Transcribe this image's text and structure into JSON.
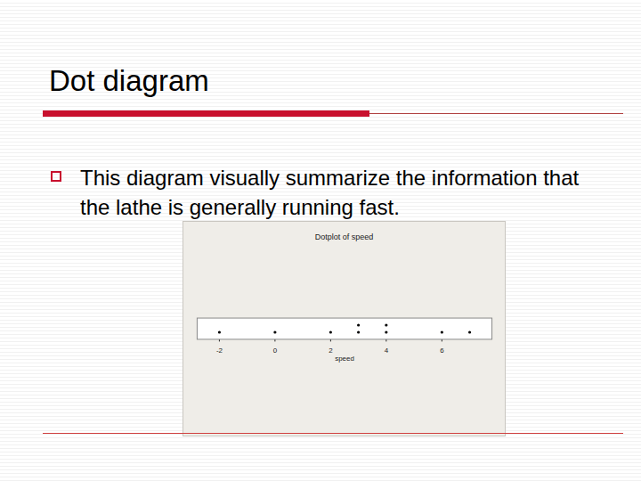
{
  "slide": {
    "title": "Dot diagram",
    "bullets": [
      "This diagram visually summarize the information that the lathe is generally running fast."
    ]
  },
  "chart_data": {
    "type": "dotplot",
    "title": "Dotplot of speed",
    "x_label": "speed",
    "values": [
      -2,
      0,
      2,
      3,
      3,
      4,
      4,
      6,
      7
    ],
    "xlim": [
      -2.8,
      7.8
    ],
    "xticks": [
      -2,
      0,
      2,
      4,
      6
    ],
    "color": "#000000",
    "grid": false
  }
}
